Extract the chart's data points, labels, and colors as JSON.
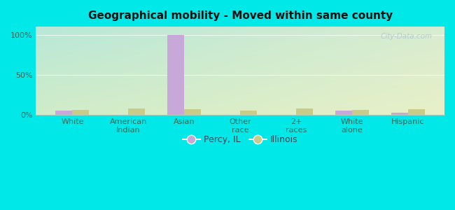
{
  "title": "Geographical mobility - Moved within same county",
  "categories": [
    "White",
    "American\nIndian",
    "Asian",
    "Other\nrace",
    "2+\nraces",
    "White\nalone",
    "Hispanic"
  ],
  "percy_values": [
    5,
    0,
    100,
    0,
    0,
    5,
    3
  ],
  "illinois_values": [
    6,
    8,
    7,
    5,
    8,
    6,
    7
  ],
  "percy_color": "#c8a8d8",
  "illinois_color": "#c8cc88",
  "bg_color": "#00e8e8",
  "plot_bg_tl": "#b8e8d8",
  "plot_bg_tr": "#d8ecd0",
  "plot_bg_bl": "#d0ecc8",
  "plot_bg_br": "#e8f0c8",
  "bar_width": 0.3,
  "ylim": [
    0,
    110
  ],
  "yticks": [
    0,
    50,
    100
  ],
  "ytick_labels": [
    "0%",
    "50%",
    "100%"
  ],
  "legend_percy": "Percy, IL",
  "legend_illinois": "Illinois",
  "watermark": "City-Data.com"
}
